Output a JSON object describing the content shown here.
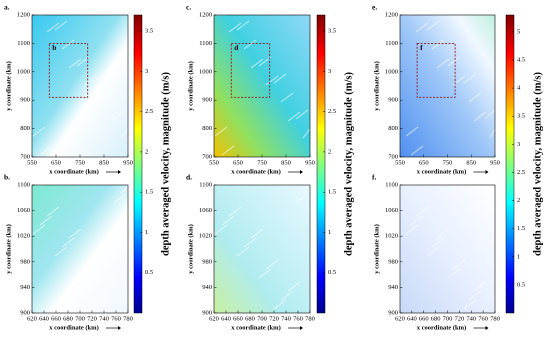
{
  "chart_data": [
    {
      "type": "heatmap",
      "panel_label": "a.",
      "box_label": "b",
      "xlabel": "x coordinate (km)",
      "ylabel": "y coordinate (km)",
      "xlim": [
        550,
        950
      ],
      "xticks": [
        550,
        650,
        750,
        850,
        950
      ],
      "ylim": [
        700,
        1200
      ],
      "yticks": [
        700,
        800,
        900,
        1000,
        1100,
        1200
      ],
      "colorbar": {
        "label": "depth averaged velocity, magnitude (m/s)",
        "lim": [
          0,
          3.7
        ],
        "ticks": [
          0.5,
          1,
          1.5,
          2,
          2.5,
          3,
          3.5
        ]
      }
    },
    {
      "type": "heatmap",
      "panel_label": "b.",
      "xlabel": "x coordinate (km)",
      "ylabel": "y coordinate (km)",
      "xlim": [
        620,
        780
      ],
      "xticks": [
        620,
        640,
        660,
        680,
        700,
        720,
        740,
        760,
        780
      ],
      "ylim": [
        900,
        1100
      ],
      "yticks": [
        900,
        940,
        980,
        1020,
        1060,
        1100
      ]
    },
    {
      "type": "heatmap",
      "panel_label": "c.",
      "box_label": "d",
      "xlabel": "x coordinate (km)",
      "ylabel": "y coordinate (km)",
      "xlim": [
        550,
        950
      ],
      "xticks": [
        550,
        650,
        750,
        850,
        950
      ],
      "ylim": [
        700,
        1200
      ],
      "yticks": [
        700,
        800,
        900,
        1000,
        1100,
        1200
      ],
      "colorbar": {
        "label": "depth averaged velocity, magnitude (m/s)",
        "lim": [
          0,
          3.7
        ],
        "ticks": [
          0.5,
          1,
          1.5,
          2,
          2.5,
          3,
          3.5
        ]
      }
    },
    {
      "type": "heatmap",
      "panel_label": "d.",
      "xlabel": "x coordinate (km)",
      "ylabel": "y coordinate (km)",
      "xlim": [
        620,
        780
      ],
      "xticks": [
        620,
        640,
        660,
        680,
        700,
        720,
        740,
        760,
        780
      ],
      "ylim": [
        900,
        1100
      ],
      "yticks": [
        900,
        940,
        980,
        1020,
        1060,
        1100
      ]
    },
    {
      "type": "heatmap",
      "panel_label": "e.",
      "box_label": "f",
      "xlabel": "x coordinate (km)",
      "ylabel": "y coordinate (km)",
      "xlim": [
        550,
        950
      ],
      "xticks": [
        550,
        650,
        750,
        850,
        950
      ],
      "ylim": [
        700,
        1200
      ],
      "yticks": [
        700,
        800,
        900,
        1000,
        1100,
        1200
      ],
      "colorbar": {
        "label": "depth averaged velocity, magnitude (m/s)",
        "lim": [
          0,
          5.3
        ],
        "ticks": [
          0.5,
          1,
          1.5,
          2,
          2.5,
          3,
          3.5,
          4,
          4.5,
          5
        ]
      }
    },
    {
      "type": "heatmap",
      "panel_label": "f.",
      "xlabel": "x coordinate (km)",
      "ylabel": "y coordinate (km)",
      "xlim": [
        620,
        780
      ],
      "xticks": [
        620,
        640,
        660,
        680,
        700,
        720,
        740,
        760,
        780
      ],
      "ylim": [
        900,
        1100
      ],
      "yticks": [
        900,
        940,
        980,
        1020,
        1060,
        1100
      ]
    }
  ]
}
